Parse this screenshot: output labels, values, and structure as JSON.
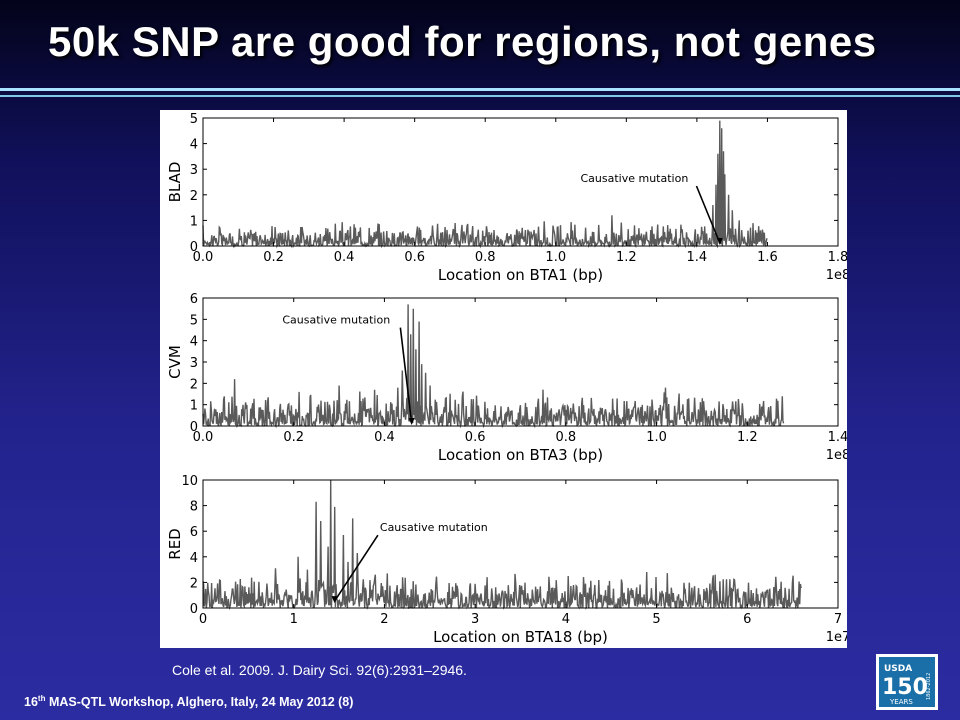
{
  "slide": {
    "title": "50k SNP are good for regions, not genes",
    "citation": "Cole et al. 2009. J. Dairy Sci. 92(6):2931–2946.",
    "footer_num": "16",
    "footer_sup": "th",
    "footer_rest": " MAS-QTL Workshop, Alghero, Italy, 24 May 2012 (8)",
    "logo_text": "150",
    "logo_top": "USDA",
    "logo_side": "1862-2012",
    "logo_bottom": "YEARS"
  },
  "colors": {
    "line": "#5a5a5a",
    "logo_blue": "#1a6fa8"
  },
  "chart_data": [
    {
      "type": "line",
      "ylabel": "BLAD",
      "xlabel": "Location on BTA1 (bp)",
      "multiplier": "1e8",
      "xlim": [
        0.0,
        1.8
      ],
      "ylim": [
        0,
        5
      ],
      "xticks": [
        0.0,
        0.2,
        0.4,
        0.6,
        0.8,
        1.0,
        1.2,
        1.4,
        1.6,
        1.8
      ],
      "xtick_labels": [
        "0.0",
        "0.2",
        "0.4",
        "0.6",
        "0.8",
        "1.0",
        "1.2",
        "1.4",
        "1.6",
        "1.8"
      ],
      "yticks": [
        0,
        1,
        2,
        3,
        4,
        5
      ],
      "ytick_labels": [
        "0",
        "1",
        "2",
        "3",
        "4",
        "5"
      ],
      "data_xmax": 1.6,
      "noise_level": 0.45,
      "peaks": [
        {
          "x": 1.445,
          "y": 1.6
        },
        {
          "x": 1.455,
          "y": 2.4
        },
        {
          "x": 1.46,
          "y": 3.6
        },
        {
          "x": 1.465,
          "y": 4.9
        },
        {
          "x": 1.47,
          "y": 4.6
        },
        {
          "x": 1.475,
          "y": 3.7
        },
        {
          "x": 1.48,
          "y": 2.8
        },
        {
          "x": 1.49,
          "y": 2.0
        },
        {
          "x": 1.5,
          "y": 1.4
        },
        {
          "x": 1.52,
          "y": 1.0
        },
        {
          "x": 1.16,
          "y": 1.2
        },
        {
          "x": 0.65,
          "y": 0.8
        }
      ],
      "annotation": {
        "text": "Causative mutation",
        "text_x": 1.07,
        "text_y": 2.5,
        "x": 1.465,
        "y": 0.0
      }
    },
    {
      "type": "line",
      "ylabel": "CVM",
      "xlabel": "Location on BTA3 (bp)",
      "multiplier": "1e8",
      "xlim": [
        0.0,
        1.4
      ],
      "ylim": [
        0,
        6
      ],
      "xticks": [
        0.0,
        0.2,
        0.4,
        0.6,
        0.8,
        1.0,
        1.2,
        1.4
      ],
      "xtick_labels": [
        "0.0",
        "0.2",
        "0.4",
        "0.6",
        "0.8",
        "1.0",
        "1.2",
        "1.4"
      ],
      "yticks": [
        0,
        1,
        2,
        3,
        4,
        5,
        6
      ],
      "ytick_labels": [
        "0",
        "1",
        "2",
        "3",
        "4",
        "5",
        "6"
      ],
      "data_xmax": 1.28,
      "noise_level": 0.8,
      "peaks": [
        {
          "x": 0.452,
          "y": 5.7
        },
        {
          "x": 0.458,
          "y": 4.3
        },
        {
          "x": 0.464,
          "y": 5.5
        },
        {
          "x": 0.47,
          "y": 3.6
        },
        {
          "x": 0.476,
          "y": 4.9
        },
        {
          "x": 0.482,
          "y": 2.9
        },
        {
          "x": 0.49,
          "y": 2.5
        },
        {
          "x": 0.5,
          "y": 1.9
        },
        {
          "x": 0.44,
          "y": 2.6
        },
        {
          "x": 0.43,
          "y": 1.8
        },
        {
          "x": 0.07,
          "y": 2.2
        },
        {
          "x": 0.3,
          "y": 1.9
        },
        {
          "x": 0.75,
          "y": 1.7
        },
        {
          "x": 1.02,
          "y": 1.8
        }
      ],
      "annotation": {
        "text": "Causative mutation",
        "text_x": 0.175,
        "text_y": 4.8,
        "x": 0.46,
        "y": 0.0
      }
    },
    {
      "type": "line",
      "ylabel": "RED",
      "xlabel": "Location on BTA18 (bp)",
      "multiplier": "1e7",
      "xlim": [
        0,
        7
      ],
      "ylim": [
        0,
        10
      ],
      "xticks": [
        0,
        1,
        2,
        3,
        4,
        5,
        6,
        7
      ],
      "xtick_labels": [
        "0",
        "1",
        "2",
        "3",
        "4",
        "5",
        "6",
        "7"
      ],
      "yticks": [
        0,
        2,
        4,
        6,
        8,
        10
      ],
      "ytick_labels": [
        "0",
        "2",
        "4",
        "6",
        "8",
        "10"
      ],
      "data_xmax": 6.6,
      "noise_level": 1.3,
      "peaks": [
        {
          "x": 1.05,
          "y": 4.0
        },
        {
          "x": 1.15,
          "y": 3.0
        },
        {
          "x": 1.25,
          "y": 8.3
        },
        {
          "x": 1.3,
          "y": 6.8
        },
        {
          "x": 1.41,
          "y": 10.0
        },
        {
          "x": 1.45,
          "y": 7.9
        },
        {
          "x": 1.55,
          "y": 5.7
        },
        {
          "x": 1.65,
          "y": 7.0
        },
        {
          "x": 1.7,
          "y": 4.3
        },
        {
          "x": 1.6,
          "y": 3.6
        },
        {
          "x": 1.38,
          "y": 4.8
        },
        {
          "x": 1.9,
          "y": 2.6
        },
        {
          "x": 0.8,
          "y": 3.1
        },
        {
          "x": 5.65,
          "y": 2.6
        },
        {
          "x": 6.5,
          "y": 2.0
        }
      ],
      "annotation": {
        "text": "Causative mutation",
        "text_x": 1.95,
        "text_y": 6.0,
        "x": 1.45,
        "y": 0.3
      }
    }
  ]
}
